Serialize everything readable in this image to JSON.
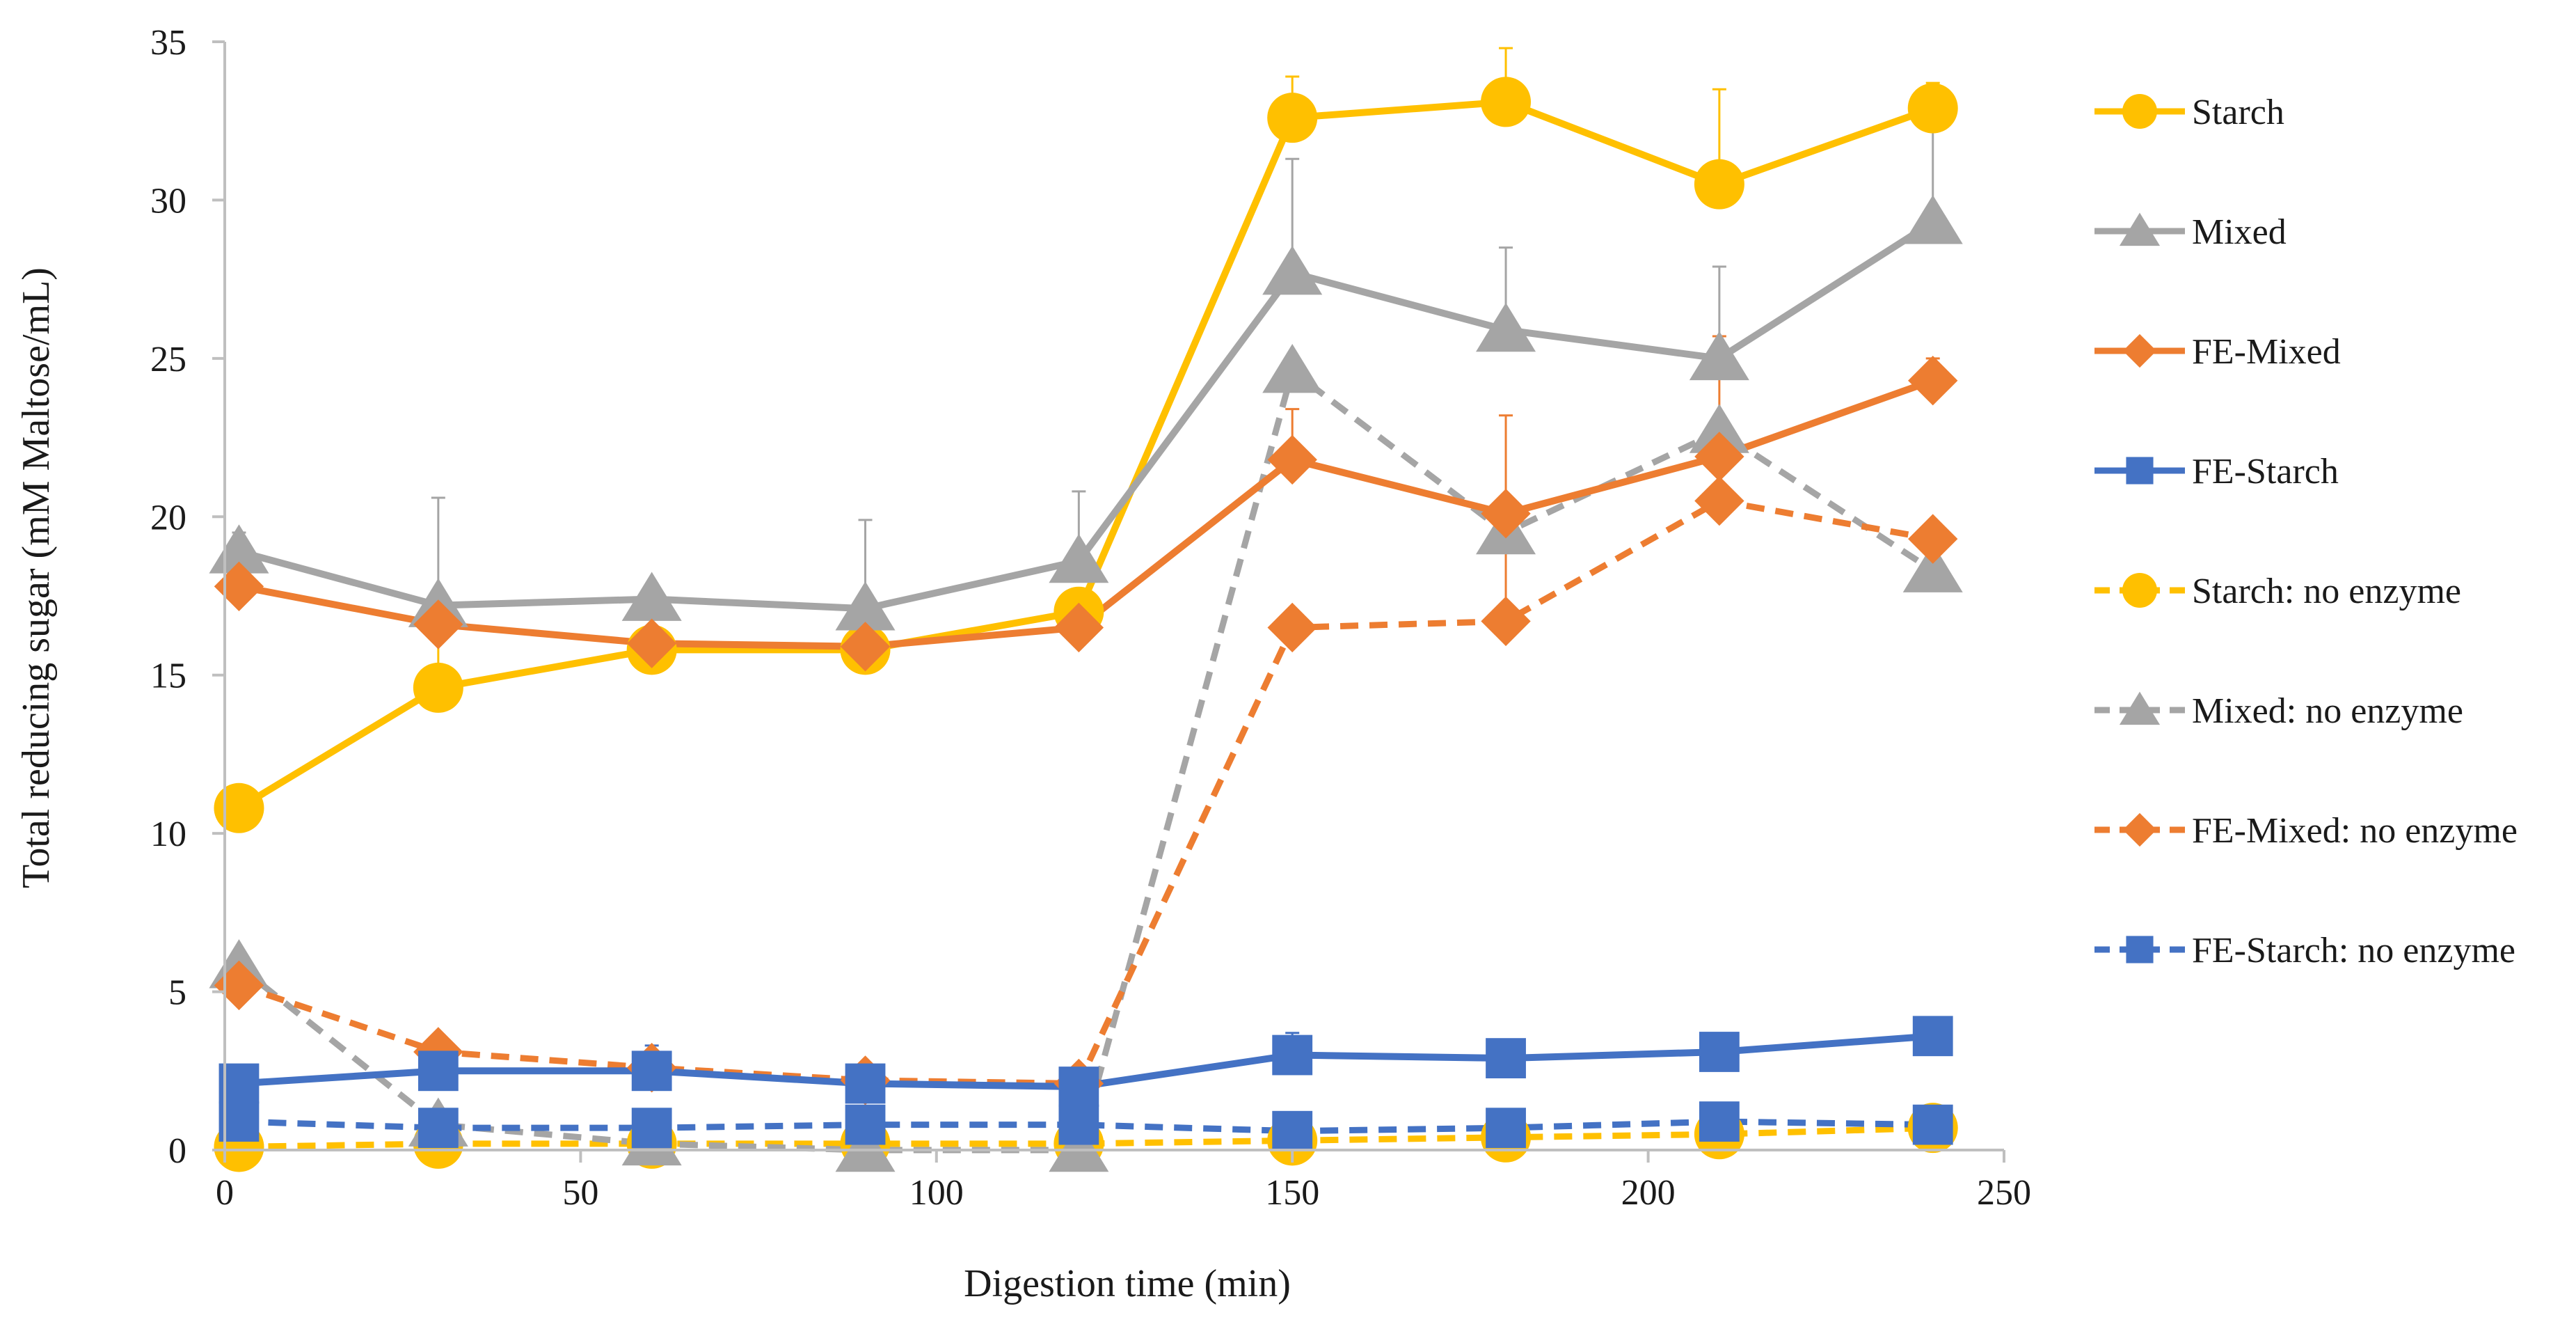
{
  "chart_data": {
    "type": "line",
    "title": "",
    "xlabel": "Digestion time (min)",
    "ylabel": "Total reducing sugar (mM Maltose/mL)",
    "xlim": [
      0,
      250
    ],
    "ylim": [
      0,
      35
    ],
    "xticks": [
      0,
      50,
      100,
      150,
      200,
      250
    ],
    "yticks": [
      0,
      5,
      10,
      15,
      20,
      25,
      30,
      35
    ],
    "grid": false,
    "legend_position": "right",
    "x": [
      2,
      30,
      60,
      90,
      120,
      150,
      180,
      210,
      240
    ],
    "series": [
      {
        "name": "Starch",
        "color": "#FFC000",
        "marker": "circle",
        "dash": "solid",
        "values": [
          10.8,
          14.6,
          15.8,
          15.8,
          17.0,
          32.6,
          33.1,
          30.5,
          32.9
        ],
        "error": [
          0,
          2.2,
          1.5,
          1.2,
          0,
          1.3,
          1.7,
          3.0,
          0.8
        ]
      },
      {
        "name": "Mixed",
        "color": "#A5A5A5",
        "marker": "triangle",
        "dash": "solid",
        "values": [
          18.9,
          17.2,
          17.4,
          17.1,
          18.6,
          27.7,
          25.9,
          25.0,
          29.3
        ],
        "error": [
          0.6,
          3.4,
          0.4,
          2.8,
          2.2,
          3.6,
          2.6,
          2.9,
          4.3
        ]
      },
      {
        "name": "FE-Mixed",
        "color": "#ED7D31",
        "marker": "diamond",
        "dash": "solid",
        "values": [
          17.8,
          16.6,
          16.0,
          15.9,
          16.5,
          21.8,
          20.1,
          21.9,
          24.3
        ],
        "error": [
          1.2,
          0.4,
          0.3,
          0.3,
          0.3,
          1.6,
          3.1,
          3.8,
          0.7
        ]
      },
      {
        "name": "FE-Starch",
        "color": "#4472C4",
        "marker": "square",
        "dash": "solid",
        "values": [
          2.1,
          2.5,
          2.5,
          2.1,
          2.0,
          3.0,
          2.9,
          3.1,
          3.6
        ],
        "error": [
          0,
          0,
          0.8,
          0,
          0,
          0.7,
          0,
          0,
          0.2
        ]
      },
      {
        "name": "Starch: no enzyme",
        "color": "#FFC000",
        "marker": "circle",
        "dash": "dashed",
        "values": [
          0.1,
          0.2,
          0.2,
          0.2,
          0.2,
          0.3,
          0.4,
          0.5,
          0.7
        ],
        "error": [
          0,
          0,
          0,
          0,
          0,
          0,
          0,
          0,
          0
        ]
      },
      {
        "name": "Mixed: no enzyme",
        "color": "#A5A5A5",
        "marker": "triangle",
        "dash": "dashed",
        "values": [
          5.8,
          0.8,
          0.2,
          0.0,
          0.0,
          24.6,
          19.5,
          22.7,
          18.3
        ],
        "error": [
          0,
          0,
          0,
          0,
          0,
          0,
          0,
          0,
          0
        ]
      },
      {
        "name": "FE-Mixed: no enzyme",
        "color": "#ED7D31",
        "marker": "diamond",
        "dash": "dashed",
        "values": [
          5.2,
          3.1,
          2.6,
          2.2,
          2.1,
          16.5,
          16.7,
          20.5,
          19.3
        ],
        "error": [
          0,
          0,
          0,
          0,
          0,
          0,
          2.8,
          0,
          0
        ]
      },
      {
        "name": "FE-Starch: no enzyme",
        "color": "#4472C4",
        "marker": "square",
        "dash": "dashed",
        "values": [
          0.9,
          0.7,
          0.7,
          0.8,
          0.8,
          0.6,
          0.7,
          0.9,
          0.8
        ],
        "error": [
          0,
          0,
          0,
          0,
          0,
          0,
          0,
          0,
          0
        ]
      }
    ]
  }
}
